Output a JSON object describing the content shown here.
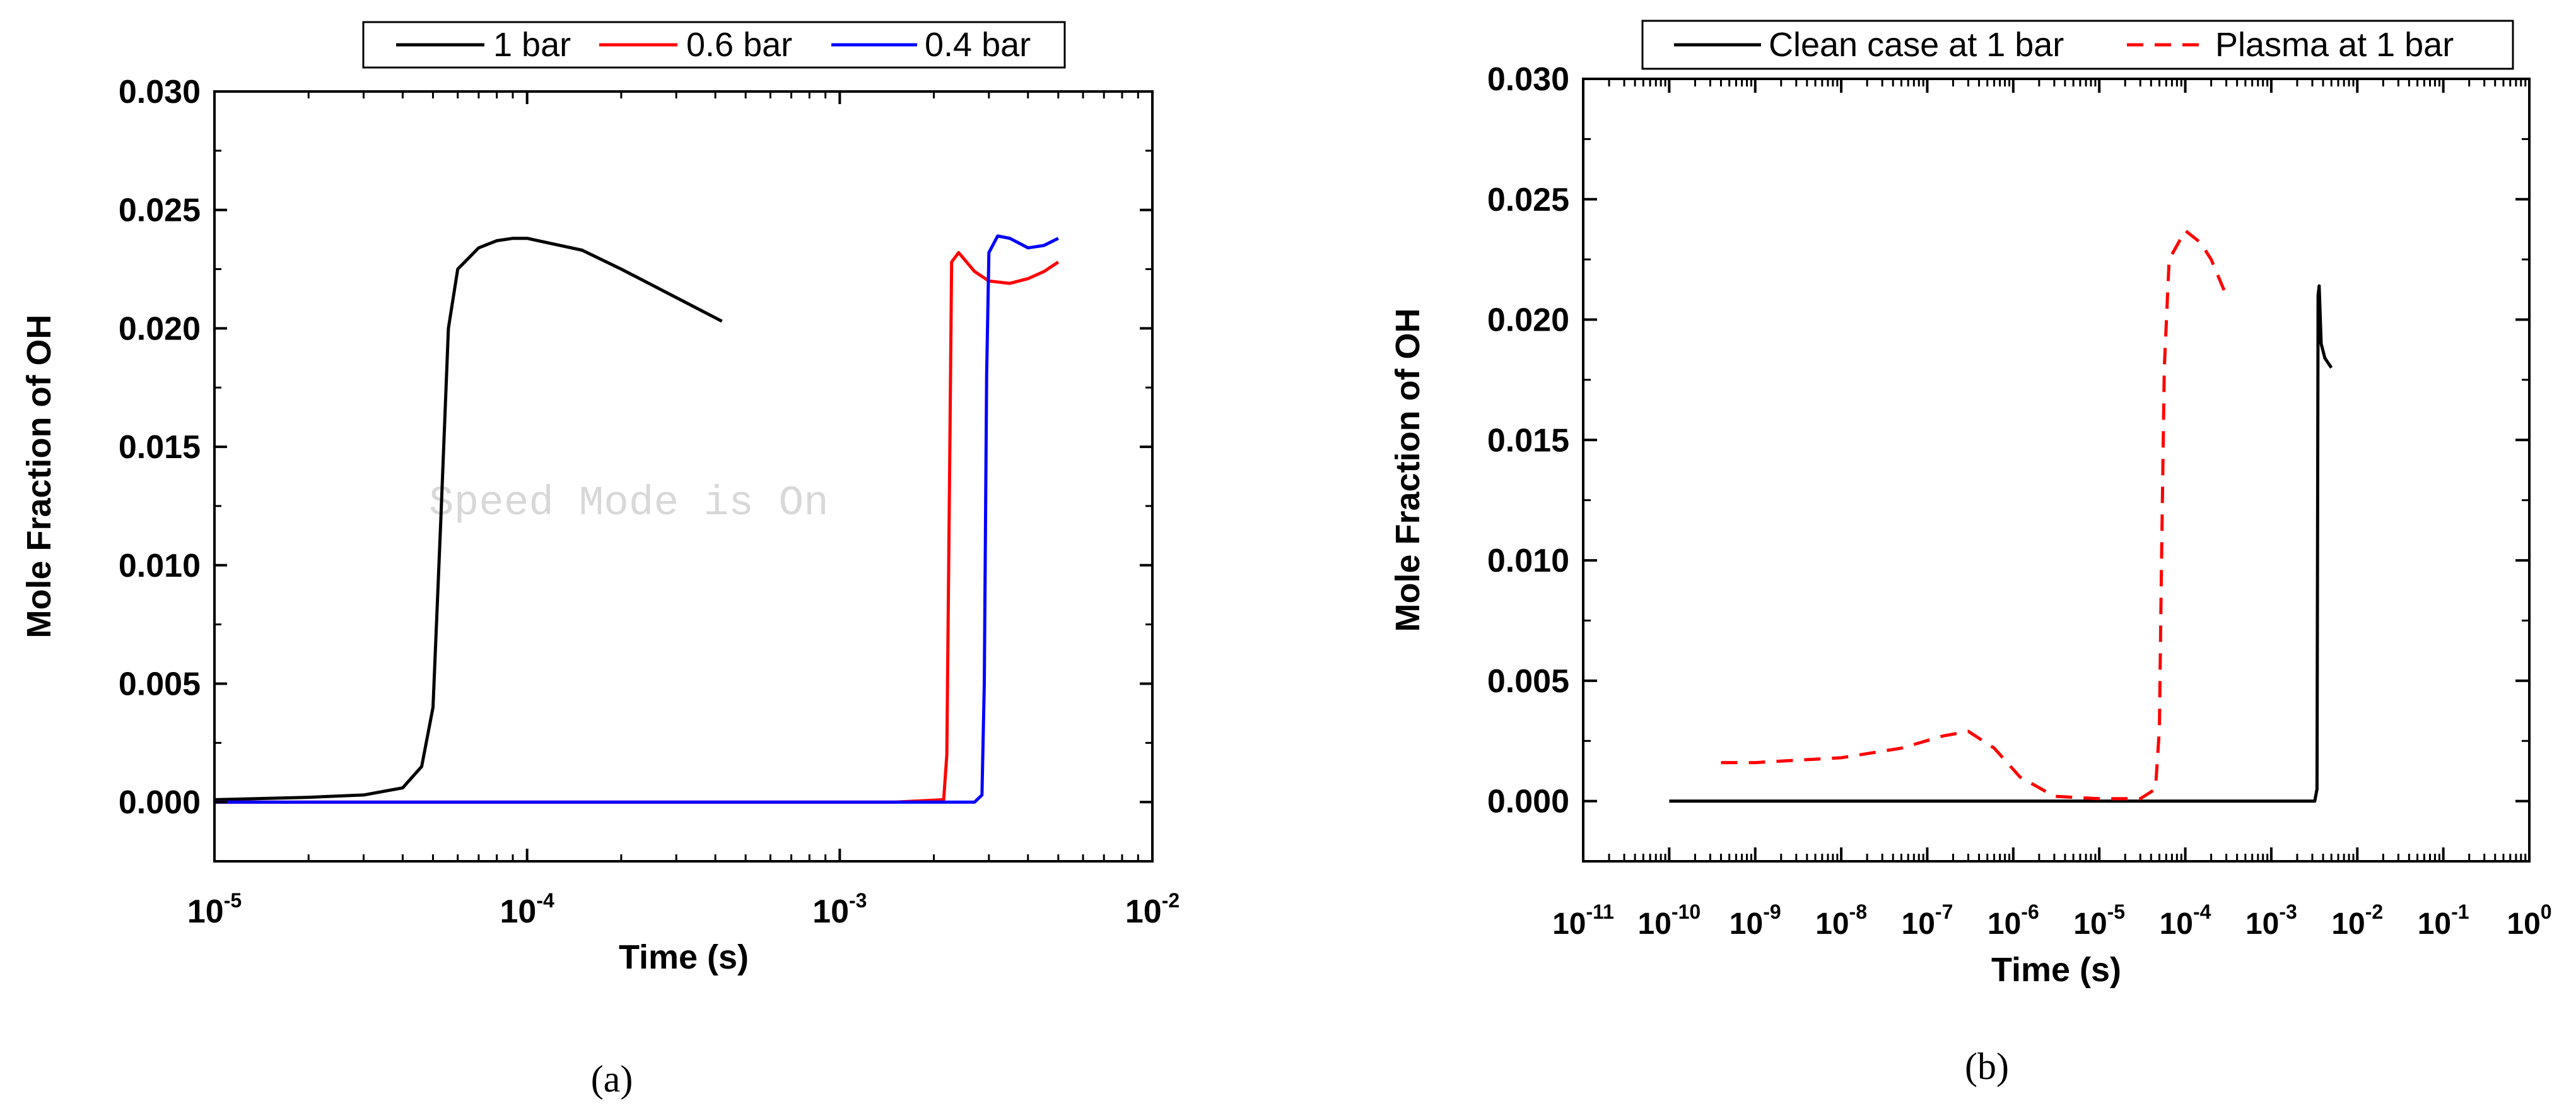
{
  "chart_data": [
    {
      "type": "line",
      "panel_label": "(a)",
      "xlabel": "Time (s)",
      "ylabel": "Mole Fraction of OH",
      "xscale": "log",
      "xlim": [
        1e-05,
        0.01
      ],
      "ylim": [
        -0.0025,
        0.03
      ],
      "x_ticks": [
        {
          "base": "10",
          "exp": "-5"
        },
        {
          "base": "10",
          "exp": "-4"
        },
        {
          "base": "10",
          "exp": "-3"
        },
        {
          "base": "10",
          "exp": "-2"
        }
      ],
      "y_ticks": [
        "0.030",
        "0.025",
        "0.020",
        "0.015",
        "0.010",
        "0.005",
        "0.000"
      ],
      "legend_position": "top",
      "watermark": "Speed Mode is On",
      "series": [
        {
          "name": "1 bar",
          "color": "#000000",
          "dash": "solid",
          "points": [
            [
              1e-05,
              0.0001
            ],
            [
              2e-05,
              0.0002
            ],
            [
              3e-05,
              0.0003
            ],
            [
              4e-05,
              0.0006
            ],
            [
              4.6e-05,
              0.0015
            ],
            [
              5e-05,
              0.004
            ],
            [
              5.3e-05,
              0.012
            ],
            [
              5.6e-05,
              0.02
            ],
            [
              6e-05,
              0.0225
            ],
            [
              7e-05,
              0.0234
            ],
            [
              8e-05,
              0.0237
            ],
            [
              9e-05,
              0.0238
            ],
            [
              0.0001,
              0.0238
            ],
            [
              0.00015,
              0.0233
            ],
            [
              0.0002,
              0.0225
            ],
            [
              0.0003,
              0.0213
            ],
            [
              0.00042,
              0.0203
            ]
          ]
        },
        {
          "name": "0.6 bar",
          "color": "#ff0000",
          "dash": "solid",
          "points": [
            [
              1e-05,
              0.0
            ],
            [
              0.0015,
              0.0
            ],
            [
              0.00215,
              0.0001
            ],
            [
              0.0022,
              0.002
            ],
            [
              0.00225,
              0.015
            ],
            [
              0.00228,
              0.0228
            ],
            [
              0.0024,
              0.0232
            ],
            [
              0.0027,
              0.0224
            ],
            [
              0.003,
              0.022
            ],
            [
              0.0035,
              0.0219
            ],
            [
              0.004,
              0.0221
            ],
            [
              0.0045,
              0.0224
            ],
            [
              0.005,
              0.0228
            ]
          ]
        },
        {
          "name": "0.4 bar",
          "color": "#0000ff",
          "dash": "solid",
          "points": [
            [
              1e-05,
              0.0
            ],
            [
              0.0027,
              0.0
            ],
            [
              0.00285,
              0.0003
            ],
            [
              0.0029,
              0.005
            ],
            [
              0.00295,
              0.018
            ],
            [
              0.003,
              0.0232
            ],
            [
              0.0032,
              0.0239
            ],
            [
              0.0035,
              0.0238
            ],
            [
              0.004,
              0.0234
            ],
            [
              0.0045,
              0.0235
            ],
            [
              0.005,
              0.0238
            ]
          ]
        }
      ]
    },
    {
      "type": "line",
      "panel_label": "(b)",
      "xlabel": "Time (s)",
      "ylabel": "Mole Fraction of OH",
      "xscale": "log",
      "xlim": [
        1e-11,
        1
      ],
      "ylim": [
        -0.0025,
        0.03
      ],
      "x_ticks": [
        {
          "base": "10",
          "exp": "-11"
        },
        {
          "base": "10",
          "exp": "-10"
        },
        {
          "base": "10",
          "exp": "-9"
        },
        {
          "base": "10",
          "exp": "-8"
        },
        {
          "base": "10",
          "exp": "-7"
        },
        {
          "base": "10",
          "exp": "-6"
        },
        {
          "base": "10",
          "exp": "-5"
        },
        {
          "base": "10",
          "exp": "-4"
        },
        {
          "base": "10",
          "exp": "-3"
        },
        {
          "base": "10",
          "exp": "-2"
        },
        {
          "base": "10",
          "exp": "-1"
        },
        {
          "base": "10",
          "exp": "0"
        }
      ],
      "y_ticks": [
        "0.030",
        "0.025",
        "0.020",
        "0.015",
        "0.010",
        "0.005",
        "0.000"
      ],
      "legend_position": "top",
      "series": [
        {
          "name": "Clean case at 1 bar",
          "color": "#000000",
          "dash": "solid",
          "points": [
            [
              1e-10,
              0.0
            ],
            [
              0.0032,
              0.0
            ],
            [
              0.0034,
              0.0005
            ],
            [
              0.0035,
              0.021
            ],
            [
              0.0036,
              0.0214
            ],
            [
              0.0038,
              0.019
            ],
            [
              0.0042,
              0.0184
            ],
            [
              0.005,
              0.018
            ]
          ]
        },
        {
          "name": "Plasma at 1 bar",
          "color": "#ff0000",
          "dash": "dashed",
          "points": [
            [
              4e-10,
              0.0016
            ],
            [
              1e-09,
              0.0016
            ],
            [
              3e-09,
              0.0017
            ],
            [
              1e-08,
              0.0018
            ],
            [
              5e-08,
              0.0022
            ],
            [
              1.5e-07,
              0.0027
            ],
            [
              3e-07,
              0.0029
            ],
            [
              6e-07,
              0.0022
            ],
            [
              1.2e-06,
              0.001
            ],
            [
              3e-06,
              0.0002
            ],
            [
              1e-05,
              0.0001
            ],
            [
              3e-05,
              0.0001
            ],
            [
              4.5e-05,
              0.0005
            ],
            [
              5e-05,
              0.003
            ],
            [
              5.3e-05,
              0.01
            ],
            [
              5.7e-05,
              0.018
            ],
            [
              6.5e-05,
              0.0225
            ],
            [
              0.0001,
              0.0237
            ],
            [
              0.00015,
              0.0232
            ],
            [
              0.0002,
              0.0225
            ],
            [
              0.0003,
              0.021
            ]
          ]
        }
      ]
    }
  ]
}
